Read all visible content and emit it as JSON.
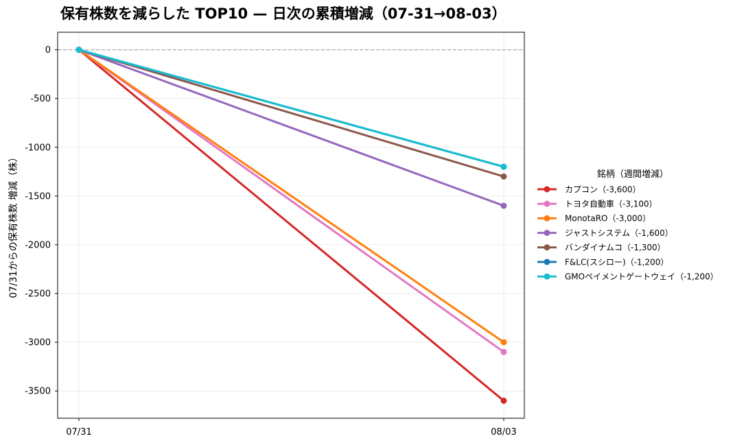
{
  "chart_data": {
    "type": "line",
    "title": "保有株数を減らした TOP10 — 日次の累積増減（07-31→08-03）",
    "xlabel": "",
    "ylabel": "07/31からの保有株数 増減（株）",
    "categories": [
      "07/31",
      "08/03"
    ],
    "ylim": [
      -3780,
      180
    ],
    "yticks": [
      0,
      -500,
      -1000,
      -1500,
      -2000,
      -2500,
      -3000,
      -3500
    ],
    "grid": true,
    "zero_line": true,
    "legend": {
      "title": "銘柄（週間増減）",
      "placement": "right"
    },
    "series": [
      {
        "name": "カプコン（-3,600）",
        "color": "#d62728",
        "values": [
          0,
          -3600
        ]
      },
      {
        "name": "トヨタ自動車（-3,100）",
        "color": "#e377c2",
        "values": [
          0,
          -3100
        ]
      },
      {
        "name": "MonotaRO（-3,000）",
        "color": "#ff7f0e",
        "values": [
          0,
          -3000
        ]
      },
      {
        "name": "ジャストシステム（-1,600）",
        "color": "#9467bd",
        "values": [
          0,
          -1600
        ]
      },
      {
        "name": "バンダイナムコ（-1,300）",
        "color": "#8c564b",
        "values": [
          0,
          -1300
        ]
      },
      {
        "name": "F&LC(スシロー)（-1,200）",
        "color": "#1f77b4",
        "values": [
          0,
          -1200
        ]
      },
      {
        "name": "GMOペイメントゲートウェイ（-1,200）",
        "color": "#17becf",
        "values": [
          0,
          -1200
        ]
      }
    ]
  }
}
